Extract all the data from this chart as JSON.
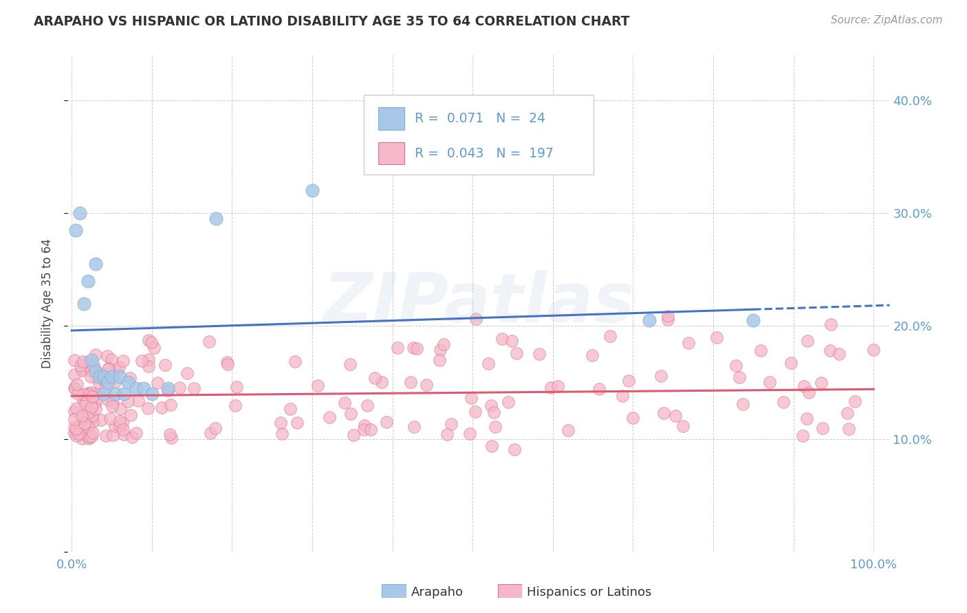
{
  "title": "ARAPAHO VS HISPANIC OR LATINO DISABILITY AGE 35 TO 64 CORRELATION CHART",
  "source": "Source: ZipAtlas.com",
  "ylabel": "Disability Age 35 to 64",
  "arapaho_color": "#a8c8e8",
  "arapaho_edge": "#7bafd4",
  "hispanic_color": "#f4b8c8",
  "hispanic_edge": "#e07090",
  "trend_blue": "#4472c4",
  "trend_red": "#e05870",
  "legend_r1": "R =  0.071",
  "legend_n1": "N =  24",
  "legend_r2": "R =  0.043",
  "legend_n2": "N =  197",
  "watermark": "ZIPatlas",
  "yticklabels_right": [
    "",
    "10.0%",
    "20.0%",
    "30.0%",
    "40.0%"
  ],
  "yticks": [
    0.0,
    0.1,
    0.2,
    0.3,
    0.4
  ],
  "xticklabels": [
    "0.0%",
    "",
    "",
    "",
    "",
    "",
    "",
    "",
    "",
    "",
    "100.0%"
  ],
  "xticks": [
    0.0,
    0.1,
    0.2,
    0.3,
    0.4,
    0.5,
    0.6,
    0.7,
    0.8,
    0.9,
    1.0
  ],
  "xlim": [
    -0.005,
    1.02
  ],
  "ylim": [
    0.0,
    0.44
  ]
}
